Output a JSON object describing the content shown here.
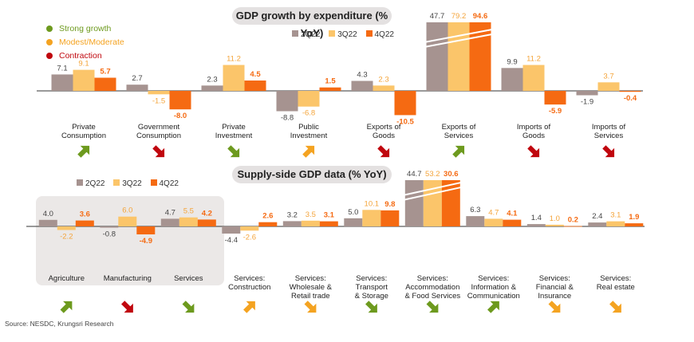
{
  "colors": {
    "q2": "#a69390",
    "q3": "#fbc56a",
    "q4": "#f56a12",
    "q4_text": "#f56a12",
    "q3_text": "#f4a43a",
    "strong": "#6d9a1e",
    "moderate": "#f4a321",
    "contraction": "#c0070e",
    "shade": "#ebe8e7"
  },
  "status_legend": [
    {
      "label": "Strong growth",
      "key": "strong"
    },
    {
      "label": "Modest/Moderate",
      "key": "moderate"
    },
    {
      "label": "Contraction",
      "key": "contraction"
    }
  ],
  "source": "Source: NESDC, Krungsri Research",
  "chart_data": [
    {
      "type": "bar",
      "title": "GDP growth by expenditure (% YoY)",
      "series_names": [
        "2Q22",
        "3Q22",
        "4Q22"
      ],
      "categories": [
        {
          "label": [
            "Private",
            "Consumption"
          ],
          "values": [
            7.1,
            9.1,
            5.7
          ],
          "labels": [
            "7.1",
            "9.1",
            "5.7"
          ],
          "status": "strong",
          "arrow": "up"
        },
        {
          "label": [
            "Government",
            "Consumption"
          ],
          "values": [
            2.7,
            -1.5,
            -8.0
          ],
          "labels": [
            "2.7",
            "-1.5",
            "-8.0"
          ],
          "status": "contraction",
          "arrow": "down"
        },
        {
          "label": [
            "Private",
            "Investment"
          ],
          "values": [
            2.3,
            11.2,
            4.5
          ],
          "labels": [
            "2.3",
            "11.2",
            "4.5"
          ],
          "status": "strong",
          "arrow": "down"
        },
        {
          "label": [
            "Public",
            "Investment"
          ],
          "values": [
            -8.8,
            -6.8,
            1.5
          ],
          "labels": [
            "-8.8",
            "-6.8",
            "1.5"
          ],
          "status": "moderate",
          "arrow": "up"
        },
        {
          "label": [
            "Exports of",
            "Goods"
          ],
          "values": [
            4.3,
            2.3,
            -10.5
          ],
          "labels": [
            "4.3",
            "2.3",
            "-10.5"
          ],
          "status": "contraction",
          "arrow": "down"
        },
        {
          "label": [
            "Exports of",
            "Services"
          ],
          "values": [
            47.7,
            79.2,
            94.6
          ],
          "labels": [
            "47.7",
            "79.2",
            "94.6"
          ],
          "status": "strong",
          "arrow": "up",
          "broken": true
        },
        {
          "label": [
            "Imports of",
            "Goods"
          ],
          "values": [
            9.9,
            11.2,
            -5.9
          ],
          "labels": [
            "9.9",
            "11.2",
            "-5.9"
          ],
          "status": "contraction",
          "arrow": "down"
        },
        {
          "label": [
            "Imports of",
            "Services"
          ],
          "values": [
            -1.9,
            3.7,
            -0.4
          ],
          "labels": [
            "-1.9",
            "3.7",
            "-0.4"
          ],
          "status": "contraction",
          "arrow": "down"
        }
      ]
    },
    {
      "type": "bar",
      "title": "Supply-side GDP data (% YoY)",
      "series_names": [
        "2Q22",
        "3Q22",
        "4Q22"
      ],
      "categories": [
        {
          "label": [
            "Agriculture"
          ],
          "values": [
            4.0,
            -2.2,
            3.6
          ],
          "labels": [
            "4.0",
            "-2.2",
            "3.6"
          ],
          "status": "strong",
          "arrow": "up"
        },
        {
          "label": [
            "Manufacturing"
          ],
          "values": [
            -0.8,
            6.0,
            -4.9
          ],
          "labels": [
            "-0.8",
            "6.0",
            "-4.9"
          ],
          "status": "contraction",
          "arrow": "down"
        },
        {
          "label": [
            "Services"
          ],
          "values": [
            4.7,
            5.5,
            4.2
          ],
          "labels": [
            "4.7",
            "5.5",
            "4.2"
          ],
          "status": "strong",
          "arrow": "down"
        },
        {
          "label": [
            "Services:",
            "Construction"
          ],
          "values": [
            -4.4,
            -2.6,
            2.6
          ],
          "labels": [
            "-4.4",
            "-2.6",
            "2.6"
          ],
          "status": "moderate",
          "arrow": "up"
        },
        {
          "label": [
            "Services:",
            "Wholesale &",
            "Retail trade"
          ],
          "values": [
            3.2,
            3.5,
            3.1
          ],
          "labels": [
            "3.2",
            "3.5",
            "3.1"
          ],
          "status": "moderate",
          "arrow": "down"
        },
        {
          "label": [
            "Services:",
            "Transport",
            "& Storage"
          ],
          "values": [
            5.0,
            10.1,
            9.8
          ],
          "labels": [
            "5.0",
            "10.1",
            "9.8"
          ],
          "status": "strong",
          "arrow": "down"
        },
        {
          "label": [
            "Services:",
            "Accommodation",
            "& Food Services"
          ],
          "values": [
            44.7,
            53.2,
            30.6
          ],
          "labels": [
            "44.7",
            "53.2",
            "30.6"
          ],
          "status": "strong",
          "arrow": "down",
          "broken": true
        },
        {
          "label": [
            "Services:",
            "Information &",
            "Communication"
          ],
          "values": [
            6.3,
            4.7,
            4.1
          ],
          "labels": [
            "6.3",
            "4.7",
            "4.1"
          ],
          "status": "strong",
          "arrow": "up"
        },
        {
          "label": [
            "Services:",
            "Financial &",
            "Insurance"
          ],
          "values": [
            1.4,
            1.0,
            0.2
          ],
          "labels": [
            "1.4",
            "1.0",
            "0.2"
          ],
          "status": "moderate",
          "arrow": "down"
        },
        {
          "label": [
            "Services:",
            "Real estate"
          ],
          "values": [
            2.4,
            3.1,
            1.9
          ],
          "labels": [
            "2.4",
            "3.1",
            "1.9"
          ],
          "status": "moderate",
          "arrow": "down"
        }
      ]
    }
  ]
}
